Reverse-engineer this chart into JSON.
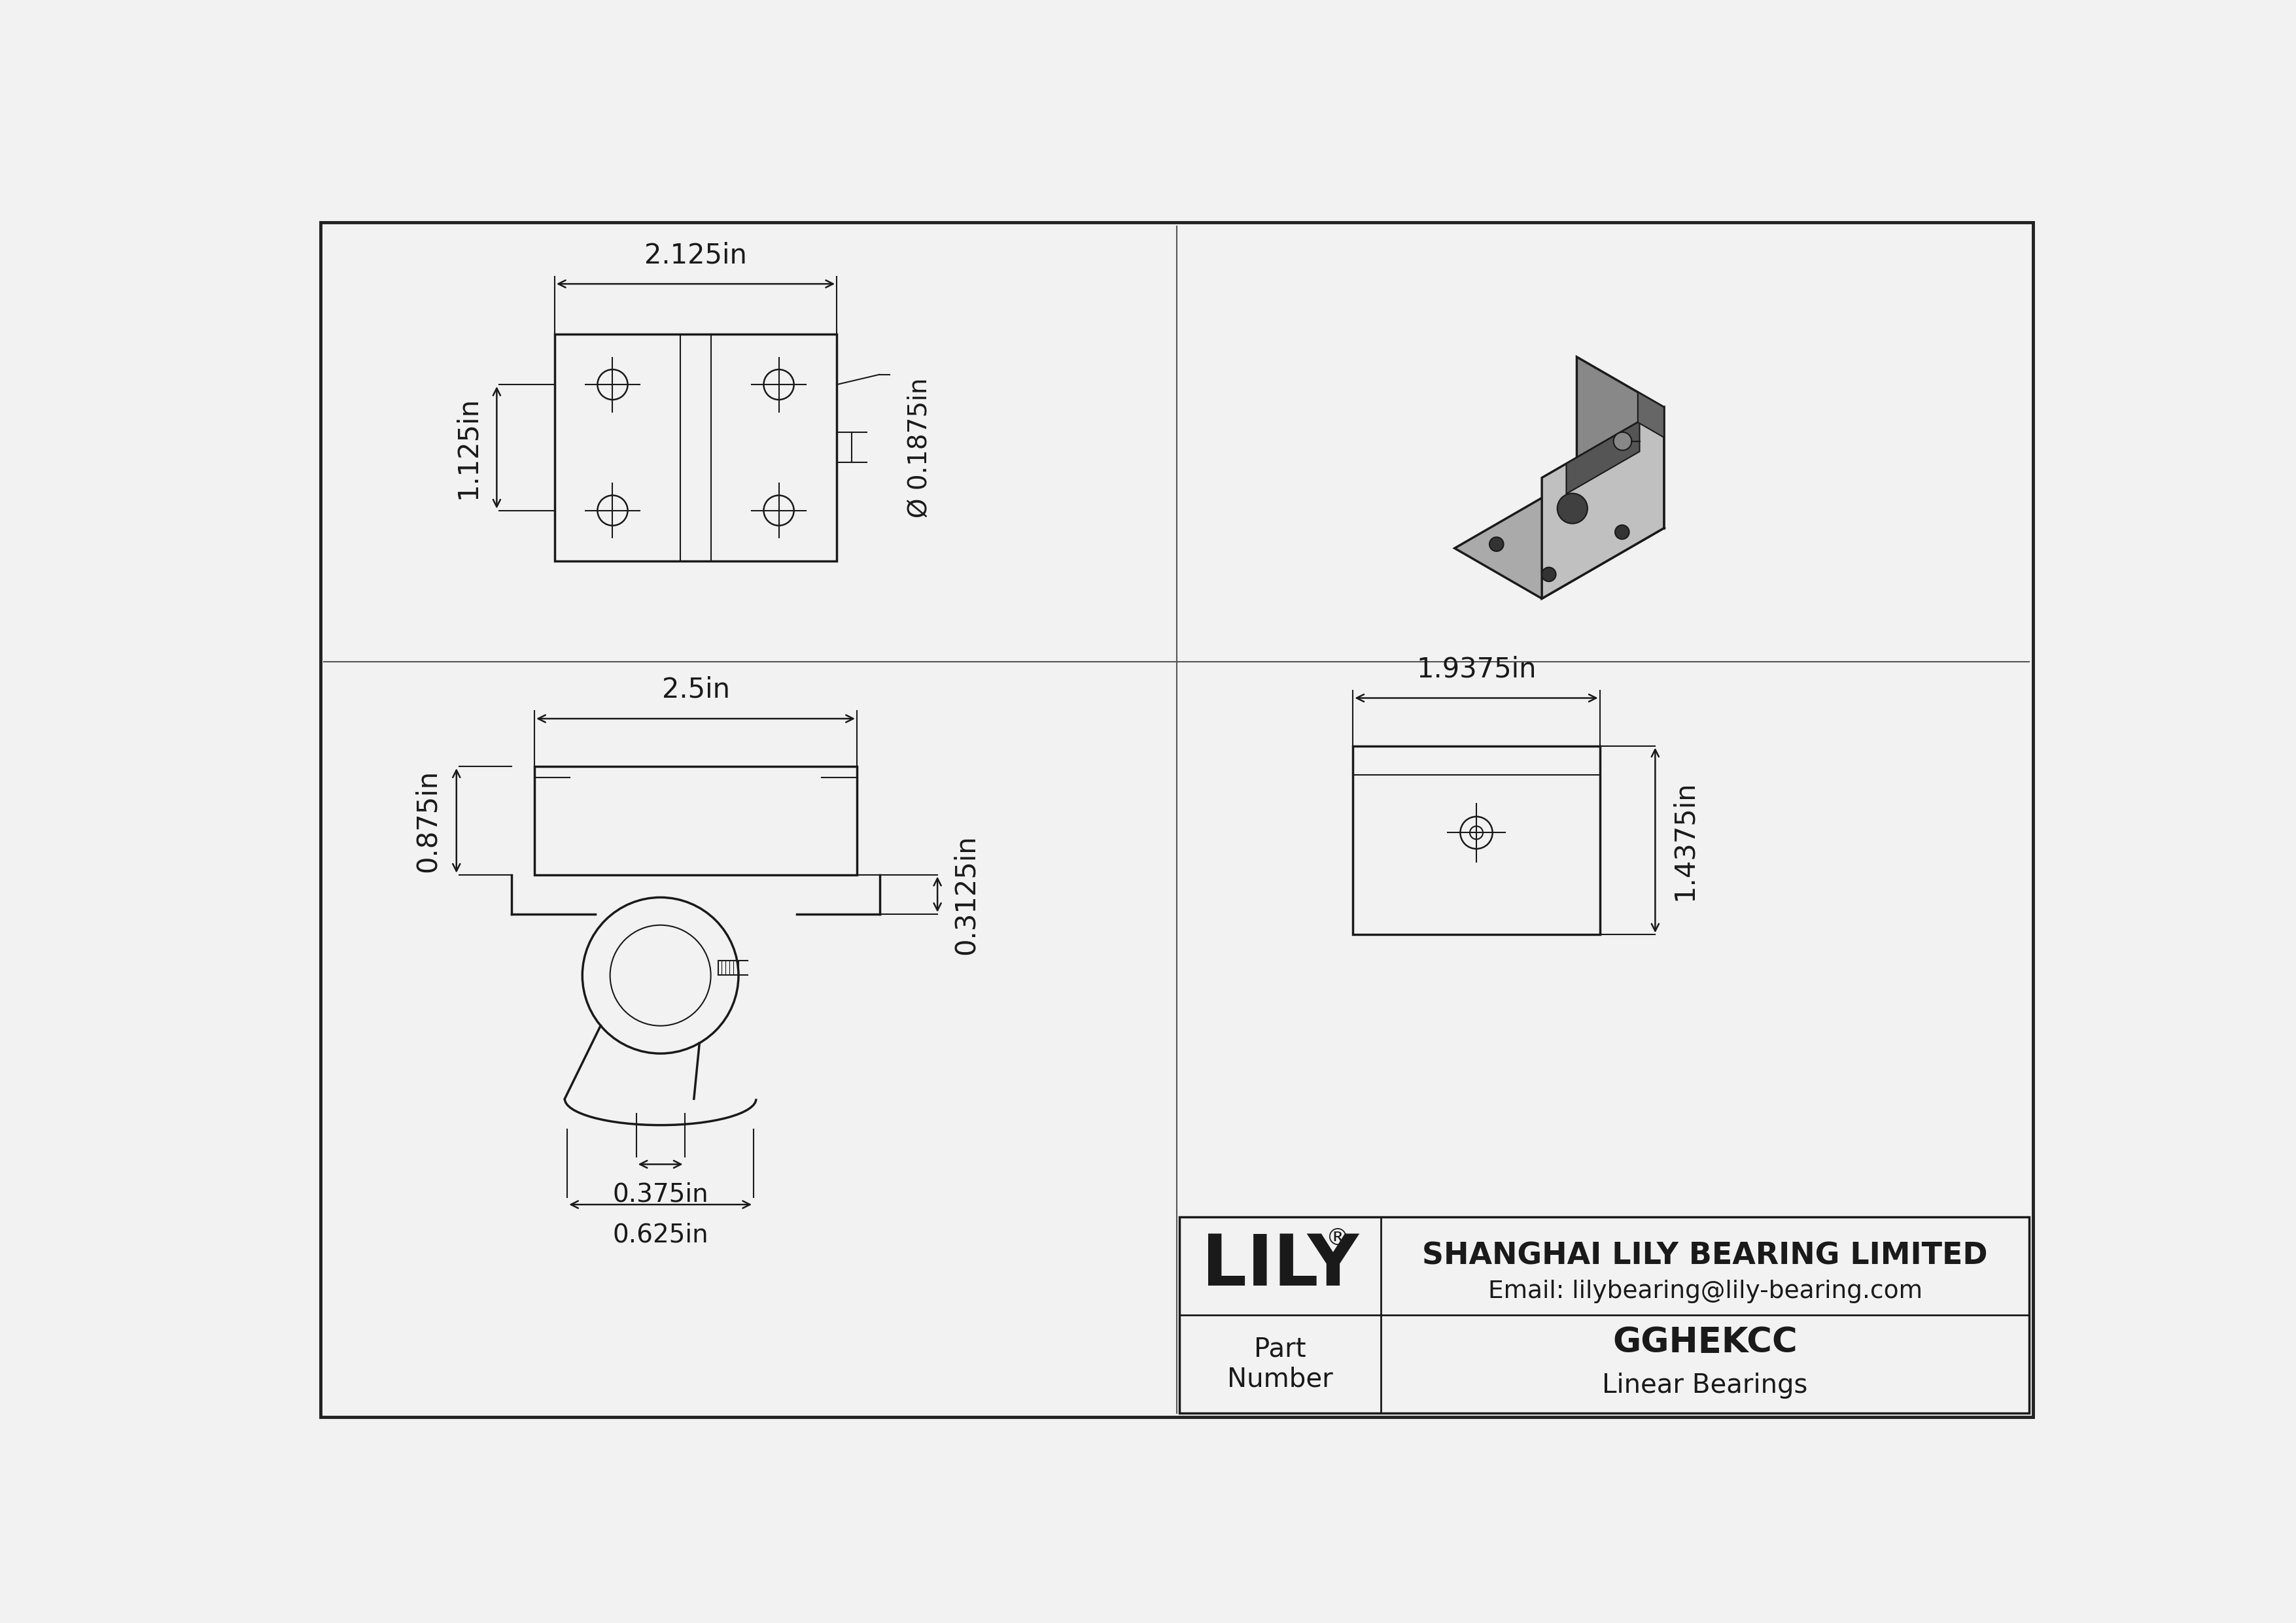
{
  "bg_color": "#f2f2f2",
  "line_color": "#1a1a1a",
  "lw_main": 2.5,
  "lw_thin": 1.5,
  "lw_dim": 1.8,
  "fs_dim": 30,
  "company": "SHANGHAI LILY BEARING LIMITED",
  "email": "Email: lilybearing@lily-bearing.com",
  "part_number": "GGHEKCC",
  "part_type": "Linear Bearings",
  "part_label": "Part\nNumber",
  "lily_text": "LILY",
  "dims": {
    "top_width": "2.125in",
    "top_height": "1.125in",
    "top_hole_dia": "Ø 0.1875in",
    "front_width": "2.5in",
    "front_height": "0.875in",
    "front_step": "0.3125in",
    "front_rail_width": "0.375in",
    "front_rail_span": "0.625in",
    "side_width": "1.9375in",
    "side_height": "1.4375in"
  }
}
